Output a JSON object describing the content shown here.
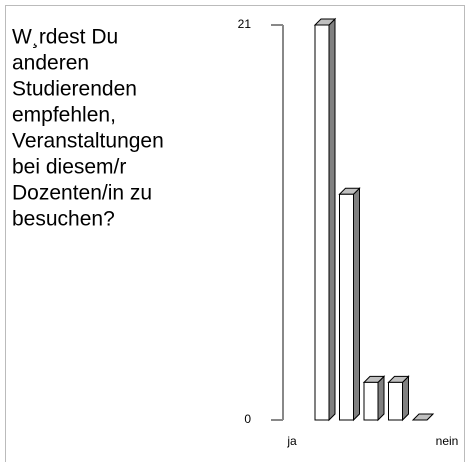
{
  "chart_data": {
    "type": "bar3d",
    "title": [
      "W¸rdest Du",
      "anderen",
      "Studierenden",
      "empfehlen,",
      "Veranstaltungen",
      "bei diesem/r",
      "Dozenten/in zu",
      "besuchen?"
    ],
    "categories": [
      "ja",
      null,
      null,
      null,
      "nein"
    ],
    "values": [
      21,
      12,
      2,
      2,
      0
    ],
    "ylim": [
      0,
      21
    ],
    "yticks": [
      0,
      21
    ],
    "color": "#ffffff",
    "side_color": "#808080",
    "top_color": "#c0c0c0"
  }
}
